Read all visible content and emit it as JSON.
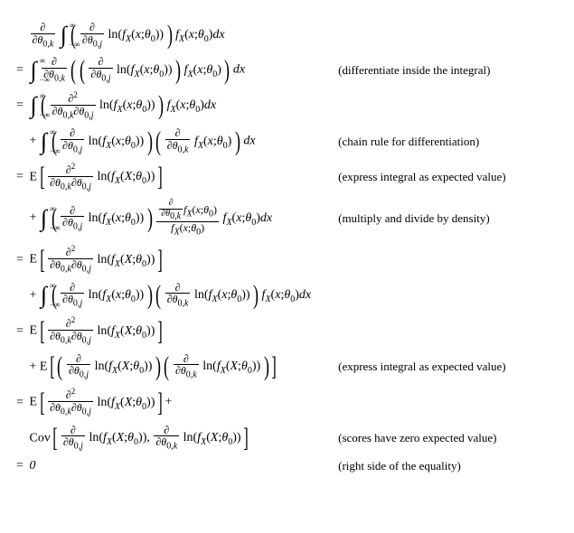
{
  "typography": {
    "font_family": "Times New Roman, serif",
    "base_fontsize_pt": 11,
    "annotation_fontsize_pt": 10,
    "color": "#000000",
    "background_color": "#ffffff"
  },
  "symbols": {
    "partial": "∂",
    "theta0": "θ₀",
    "integral_upper": "∞",
    "integral_lower": "−∞",
    "ln": "ln",
    "fX": "f_X",
    "E": "E",
    "Cov": "Cov",
    "dx": "dx"
  },
  "annotations": {
    "a1": "(differentiate inside the integral)",
    "a2": "(chain rule for differentiation)",
    "a3": "(express integral as expected value)",
    "a4": "(multiply and divide by density)",
    "a5": "(express integral as expected value)",
    "a6": "(scores have zero expected value)",
    "a7": "(right side of the equality)"
  },
  "final_value": "0"
}
